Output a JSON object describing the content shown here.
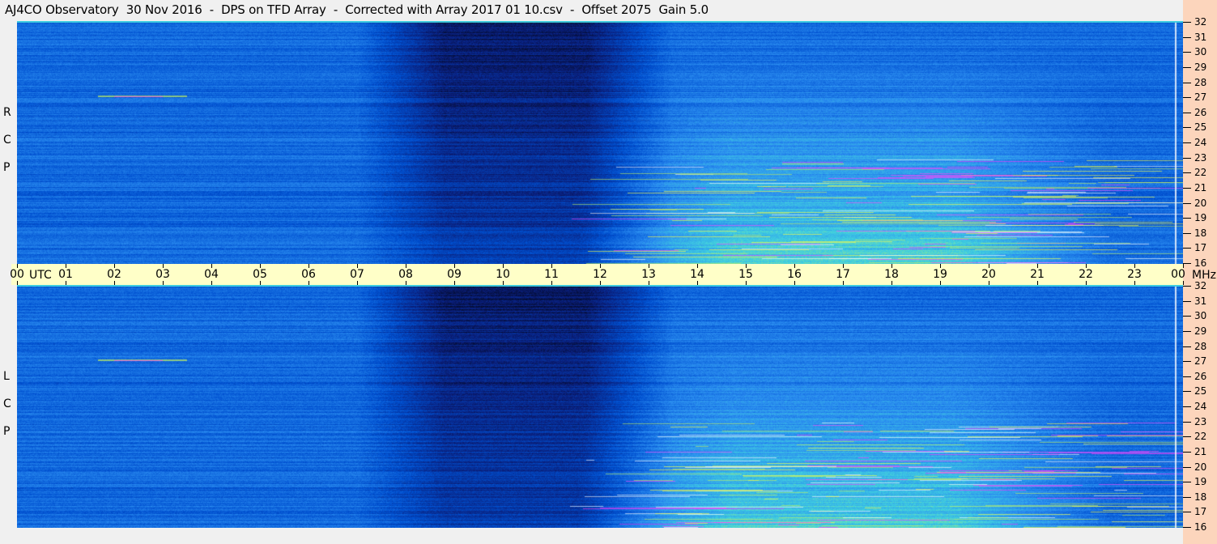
{
  "title": "AJ4CO Observatory  30 Nov 2016  -  DPS on TFD Array  -  Corrected with Array 2017 01 10.csv  -  Offset 2075  Gain 5.0",
  "chart_data": [
    {
      "type": "heatmap",
      "panel": "RCP",
      "panel_label": [
        "R",
        "C",
        "P"
      ],
      "x_ticks": [
        "00",
        "01",
        "02",
        "03",
        "04",
        "05",
        "06",
        "07",
        "08",
        "09",
        "10",
        "11",
        "12",
        "13",
        "14",
        "15",
        "16",
        "17",
        "18",
        "19",
        "20",
        "21",
        "22",
        "23",
        "00"
      ],
      "x_unit": "UTC",
      "y_ticks": [
        32,
        31,
        30,
        29,
        28,
        27,
        26,
        25,
        24,
        23,
        22,
        21,
        20,
        19,
        18,
        17,
        16
      ],
      "y_unit": "MHz",
      "ylim": [
        16,
        32
      ],
      "xlim": [
        0,
        24
      ],
      "colormap": [
        "#000000",
        "#0a1e7a",
        "#0050d0",
        "#2a8cf0",
        "#40d0e0",
        "#c0f060",
        "#ffff40",
        "#ff40ff",
        "#ffffff"
      ]
    },
    {
      "type": "heatmap",
      "panel": "LCP",
      "panel_label": [
        "L",
        "C",
        "P"
      ],
      "x_ticks": [
        "00",
        "01",
        "02",
        "03",
        "04",
        "05",
        "06",
        "07",
        "08",
        "09",
        "10",
        "11",
        "12",
        "13",
        "14",
        "15",
        "16",
        "17",
        "18",
        "19",
        "20",
        "21",
        "22",
        "23",
        "00"
      ],
      "x_unit": "UTC",
      "y_ticks": [
        32,
        31,
        30,
        29,
        28,
        27,
        26,
        25,
        24,
        23,
        22,
        21,
        20,
        19,
        18,
        17,
        16
      ],
      "y_unit": "MHz",
      "ylim": [
        16,
        32
      ],
      "xlim": [
        0,
        24
      ]
    }
  ],
  "colors": {
    "time_band": "#ffffc8",
    "freq_axis": "#fcd5bc"
  }
}
